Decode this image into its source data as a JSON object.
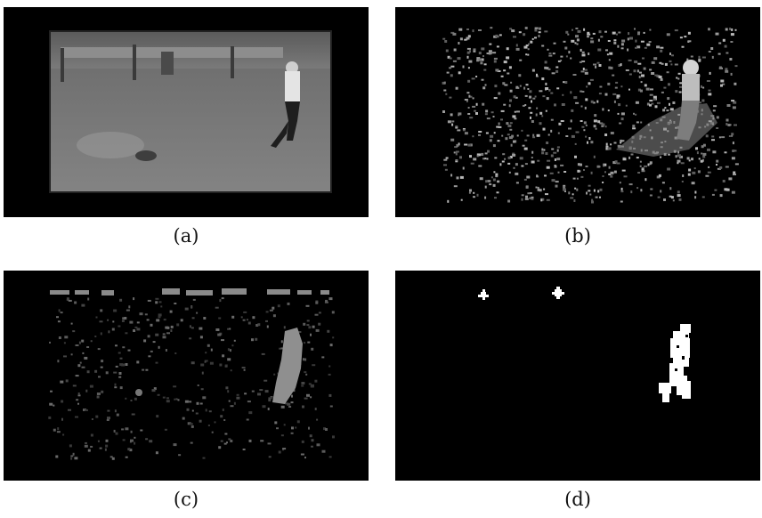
{
  "figure": {
    "panels": [
      {
        "id": "a",
        "caption": "(a)"
      },
      {
        "id": "b",
        "caption": "(b)"
      },
      {
        "id": "c",
        "caption": "(c)"
      },
      {
        "id": "d",
        "caption": "(d)"
      }
    ]
  },
  "colors": {
    "background": "#000000",
    "field": "#6f6f6f",
    "foreground": "#ffffff"
  }
}
